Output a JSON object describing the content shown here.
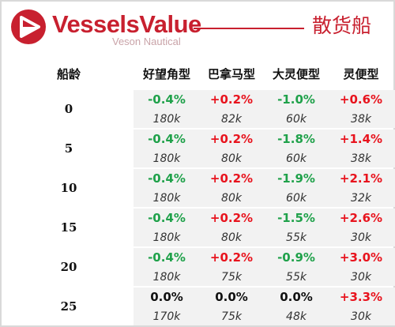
{
  "header": {
    "brand": "VesselsValue",
    "brand_sub": "Veson Nautical",
    "title": "散货船"
  },
  "table": {
    "age_header": "船龄",
    "columns": [
      "好望角型",
      "巴拿马型",
      "大灵便型",
      "灵便型"
    ],
    "rows": [
      {
        "age": "0",
        "changes": [
          "-0.4%",
          "+0.2%",
          "-1.0%",
          "+0.6%"
        ],
        "values": [
          "180k",
          "82k",
          "60k",
          "38k"
        ]
      },
      {
        "age": "5",
        "changes": [
          "-0.4%",
          "+0.2%",
          "-1.8%",
          "+1.4%"
        ],
        "values": [
          "180k",
          "80k",
          "60k",
          "38k"
        ]
      },
      {
        "age": "10",
        "changes": [
          "-0.4%",
          "+0.2%",
          "-1.9%",
          "+2.1%"
        ],
        "values": [
          "180k",
          "80k",
          "60k",
          "32k"
        ]
      },
      {
        "age": "15",
        "changes": [
          "-0.4%",
          "+0.2%",
          "-1.5%",
          "+2.6%"
        ],
        "values": [
          "180k",
          "80k",
          "55k",
          "30k"
        ]
      },
      {
        "age": "20",
        "changes": [
          "-0.4%",
          "+0.2%",
          "-0.9%",
          "+3.0%"
        ],
        "values": [
          "180k",
          "75k",
          "55k",
          "30k"
        ]
      },
      {
        "age": "25",
        "changes": [
          "0.0%",
          "0.0%",
          "0.0%",
          "+3.3%"
        ],
        "values": [
          "170k",
          "75k",
          "48k",
          "30k"
        ]
      }
    ]
  },
  "colors": {
    "brand": "#c8202f",
    "negative": "#1fa14a",
    "positive": "#e8131d",
    "neutral": "#111111"
  }
}
